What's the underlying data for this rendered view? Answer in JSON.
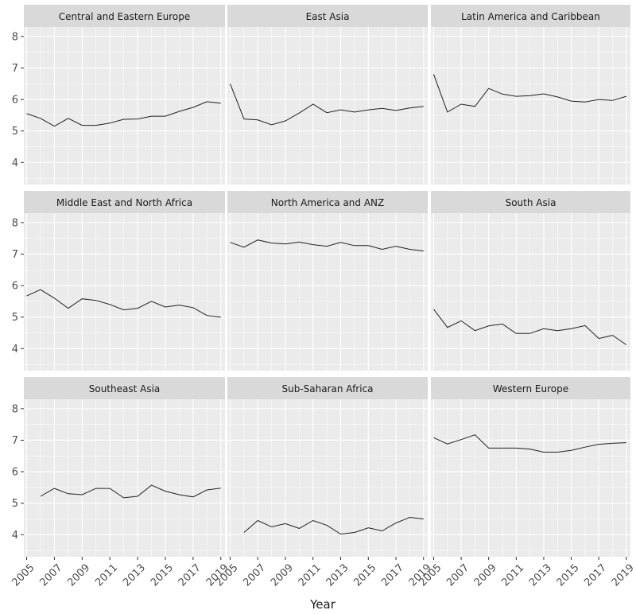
{
  "chart_data": {
    "type": "line",
    "xlabel": "Year",
    "ylabel": "",
    "ylim": [
      3.3,
      8.3
    ],
    "xlim": [
      2004.8,
      2019.3
    ],
    "yticks": [
      4,
      5,
      6,
      7,
      8
    ],
    "xticks": [
      2005,
      2007,
      2009,
      2011,
      2013,
      2015,
      2017,
      2019
    ],
    "grid": true,
    "panels": [
      {
        "name": "Central and Eastern Europe",
        "x": [
          2005,
          2006,
          2007,
          2008,
          2009,
          2010,
          2011,
          2012,
          2013,
          2014,
          2015,
          2016,
          2017,
          2018,
          2019
        ],
        "values": [
          5.55,
          5.4,
          5.15,
          5.4,
          5.18,
          5.18,
          5.25,
          5.37,
          5.38,
          5.47,
          5.47,
          5.62,
          5.75,
          5.93,
          5.88
        ]
      },
      {
        "name": "East Asia",
        "x": [
          2005,
          2006,
          2007,
          2008,
          2009,
          2010,
          2011,
          2012,
          2013,
          2014,
          2015,
          2016,
          2017,
          2018,
          2019
        ],
        "values": [
          6.5,
          5.38,
          5.35,
          5.2,
          5.32,
          5.57,
          5.85,
          5.58,
          5.67,
          5.6,
          5.67,
          5.72,
          5.65,
          5.73,
          5.78
        ]
      },
      {
        "name": "Latin America and Caribbean",
        "x": [
          2005,
          2006,
          2007,
          2008,
          2009,
          2010,
          2011,
          2012,
          2013,
          2014,
          2015,
          2016,
          2017,
          2018,
          2019
        ],
        "values": [
          6.8,
          5.6,
          5.85,
          5.78,
          6.35,
          6.17,
          6.1,
          6.12,
          6.18,
          6.08,
          5.95,
          5.92,
          6.0,
          5.97,
          6.1
        ]
      },
      {
        "name": "Middle East and North Africa",
        "x": [
          2005,
          2006,
          2007,
          2008,
          2009,
          2010,
          2011,
          2012,
          2013,
          2014,
          2015,
          2016,
          2017,
          2018,
          2019
        ],
        "values": [
          5.67,
          5.87,
          5.6,
          5.28,
          5.58,
          5.53,
          5.4,
          5.23,
          5.28,
          5.5,
          5.32,
          5.38,
          5.3,
          5.05,
          5.0
        ]
      },
      {
        "name": "North America and ANZ",
        "x": [
          2005,
          2006,
          2007,
          2008,
          2009,
          2010,
          2011,
          2012,
          2013,
          2014,
          2015,
          2016,
          2017,
          2018,
          2019
        ],
        "values": [
          7.37,
          7.22,
          7.45,
          7.35,
          7.32,
          7.38,
          7.3,
          7.25,
          7.37,
          7.27,
          7.27,
          7.15,
          7.25,
          7.15,
          7.1
        ]
      },
      {
        "name": "South Asia",
        "x": [
          2005,
          2006,
          2007,
          2008,
          2009,
          2010,
          2011,
          2012,
          2013,
          2014,
          2015,
          2016,
          2017,
          2018,
          2019
        ],
        "values": [
          5.25,
          4.67,
          4.88,
          4.57,
          4.72,
          4.78,
          4.48,
          4.48,
          4.63,
          4.57,
          4.63,
          4.73,
          4.32,
          4.42,
          4.12
        ]
      },
      {
        "name": "Southeast Asia",
        "x": [
          2006,
          2007,
          2008,
          2009,
          2010,
          2011,
          2012,
          2013,
          2014,
          2015,
          2016,
          2017,
          2018,
          2019
        ],
        "values": [
          5.22,
          5.47,
          5.3,
          5.27,
          5.47,
          5.47,
          5.17,
          5.22,
          5.57,
          5.38,
          5.27,
          5.2,
          5.42,
          5.48
        ]
      },
      {
        "name": "Sub-Saharan Africa",
        "x": [
          2006,
          2007,
          2008,
          2009,
          2010,
          2011,
          2012,
          2013,
          2014,
          2015,
          2016,
          2017,
          2018,
          2019
        ],
        "values": [
          4.07,
          4.45,
          4.25,
          4.35,
          4.2,
          4.45,
          4.3,
          4.02,
          4.07,
          4.22,
          4.12,
          4.37,
          4.55,
          4.5
        ]
      },
      {
        "name": "Western Europe",
        "x": [
          2005,
          2006,
          2007,
          2008,
          2009,
          2010,
          2011,
          2012,
          2013,
          2014,
          2015,
          2016,
          2017,
          2018,
          2019
        ],
        "values": [
          7.08,
          6.88,
          7.02,
          7.17,
          6.75,
          6.75,
          6.75,
          6.72,
          6.62,
          6.62,
          6.68,
          6.78,
          6.87,
          6.9,
          6.92
        ]
      }
    ]
  }
}
